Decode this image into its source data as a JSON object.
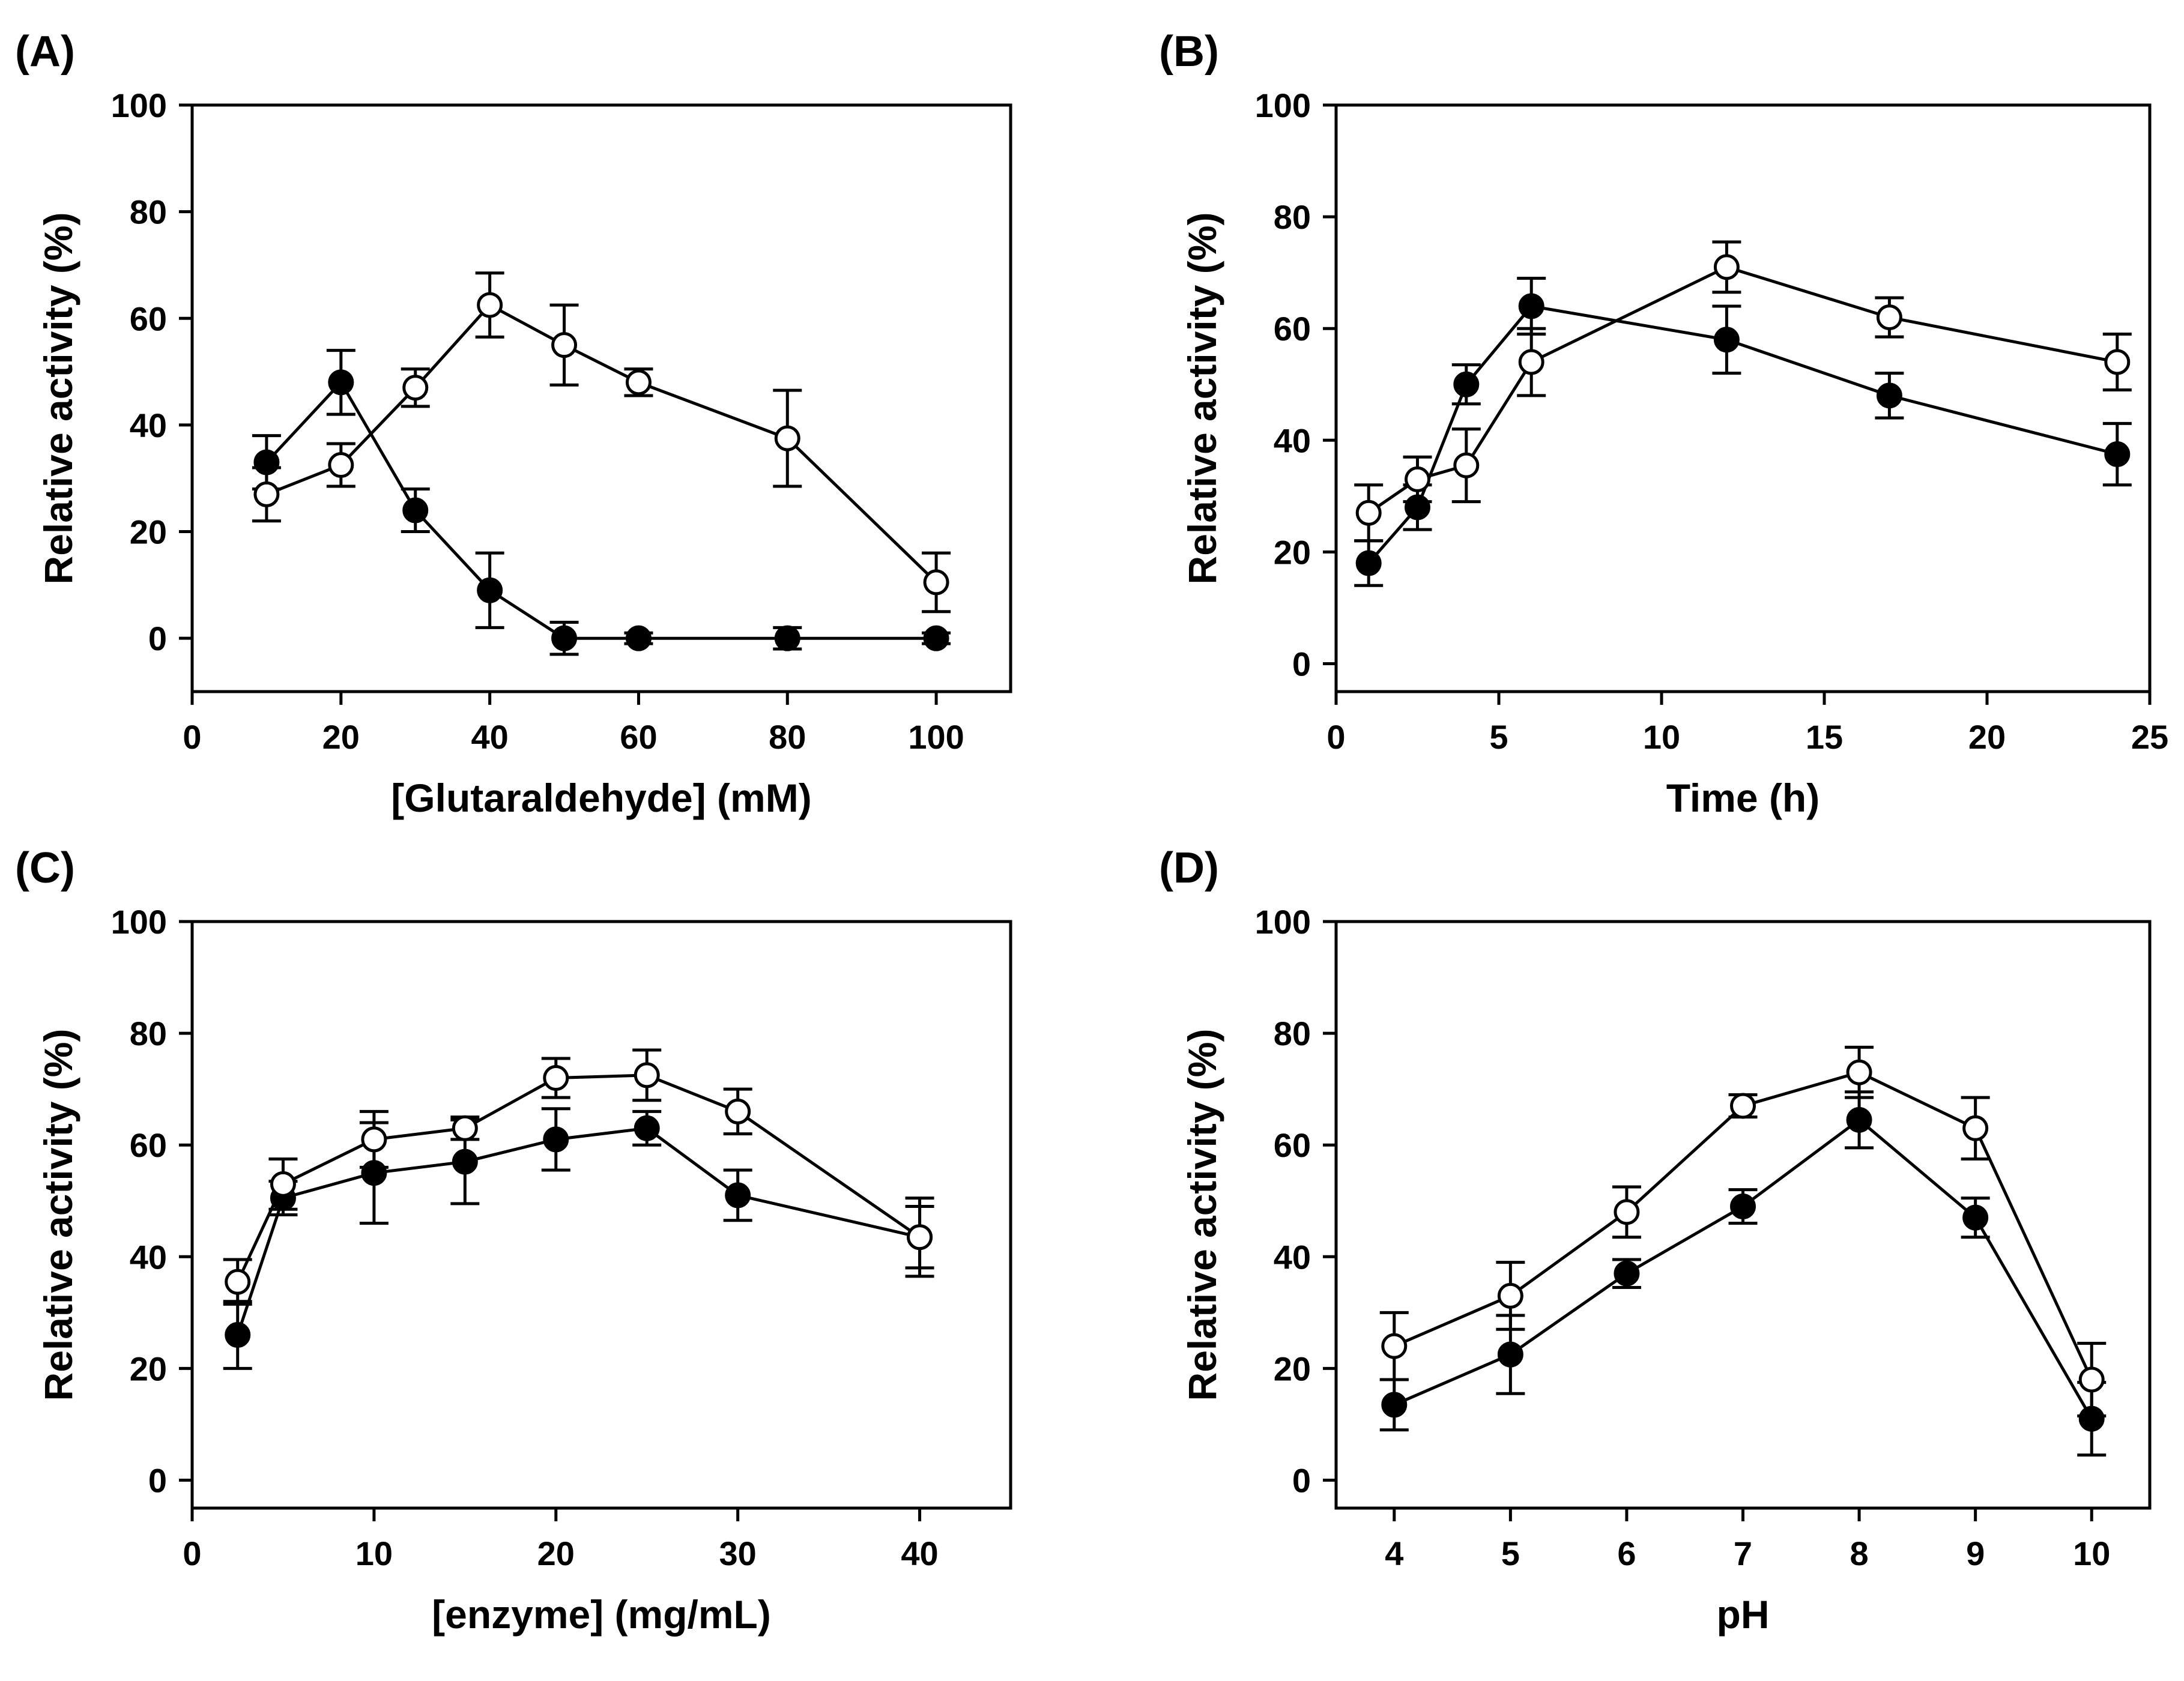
{
  "chart_data": [
    {
      "panel": "(A)",
      "type": "line",
      "xlabel": "[Glutaraldehyde] (mM)",
      "ylabel": "Relative activity (%)",
      "xlim": [
        0,
        110
      ],
      "ylim": [
        -10,
        100
      ],
      "xticks": [
        0,
        20,
        40,
        60,
        80,
        100
      ],
      "yticks": [
        0,
        20,
        40,
        60,
        80,
        100
      ],
      "series": [
        {
          "name": "filled",
          "marker": "filled-circle",
          "x": [
            10,
            20,
            30,
            40,
            50,
            60,
            80,
            100
          ],
          "values": [
            33,
            48,
            24,
            9,
            0,
            0,
            0,
            0
          ],
          "errors": [
            5,
            6,
            4,
            7,
            3,
            1,
            2,
            1
          ]
        },
        {
          "name": "open",
          "marker": "open-circle",
          "x": [
            10,
            20,
            30,
            40,
            50,
            60,
            80,
            100
          ],
          "values": [
            27,
            32.5,
            47,
            62.5,
            55,
            48,
            37.5,
            10.5
          ],
          "errors": [
            5,
            4,
            3.5,
            6,
            7.5,
            2.5,
            9,
            5.5
          ]
        }
      ]
    },
    {
      "panel": "(B)",
      "type": "line",
      "xlabel": "Time (h)",
      "ylabel": "Relative activity (%)",
      "xlim": [
        0,
        25
      ],
      "ylim": [
        -5,
        100
      ],
      "xticks": [
        0,
        5,
        10,
        15,
        20,
        25
      ],
      "yticks": [
        0,
        20,
        40,
        60,
        80,
        100
      ],
      "series": [
        {
          "name": "filled",
          "marker": "filled-circle",
          "x": [
            1,
            2.5,
            4,
            6,
            12,
            17,
            24
          ],
          "values": [
            18,
            28,
            50,
            64,
            58,
            48,
            37.5
          ],
          "errors": [
            4,
            4,
            3.5,
            5,
            6,
            4,
            5.5
          ]
        },
        {
          "name": "open",
          "marker": "open-circle",
          "x": [
            1,
            2.5,
            4,
            6,
            12,
            17,
            24
          ],
          "values": [
            27,
            33,
            35.5,
            54,
            71,
            62,
            54
          ],
          "errors": [
            5,
            4,
            6.5,
            6,
            4.5,
            3.5,
            5
          ]
        }
      ]
    },
    {
      "panel": "(C)",
      "type": "line",
      "xlabel": "[enzyme] (mg/mL)",
      "ylabel": "Relative activity (%)",
      "xlim": [
        0,
        45
      ],
      "ylim": [
        -5,
        100
      ],
      "xticks": [
        0,
        10,
        20,
        30,
        40
      ],
      "yticks": [
        0,
        20,
        40,
        60,
        80,
        100
      ],
      "series": [
        {
          "name": "filled",
          "marker": "filled-circle",
          "x": [
            2.5,
            5,
            10,
            15,
            20,
            25,
            30,
            40
          ],
          "values": [
            26,
            50.5,
            55,
            57,
            61,
            63,
            51,
            43.5
          ],
          "errors": [
            6,
            3,
            9,
            7.5,
            5.5,
            3,
            4.5,
            5.5
          ]
        },
        {
          "name": "open",
          "marker": "open-circle",
          "x": [
            2.5,
            5,
            10,
            15,
            20,
            25,
            30,
            40
          ],
          "values": [
            35.5,
            53,
            61,
            63,
            72,
            72.5,
            66,
            43.5
          ],
          "errors": [
            4,
            4.5,
            5,
            2,
            3.5,
            4.5,
            4,
            7
          ]
        }
      ]
    },
    {
      "panel": "(D)",
      "type": "line",
      "xlabel": "pH",
      "ylabel": "Relative activity (%)",
      "xlim": [
        3.5,
        10.5
      ],
      "ylim": [
        -5,
        100
      ],
      "xticks": [
        4,
        5,
        6,
        7,
        8,
        9,
        10
      ],
      "yticks": [
        0,
        20,
        40,
        60,
        80,
        100
      ],
      "series": [
        {
          "name": "filled",
          "marker": "filled-circle",
          "x": [
            4,
            5,
            6,
            7,
            8,
            9,
            10
          ],
          "values": [
            13.5,
            22.5,
            37,
            49,
            64.5,
            47,
            11
          ],
          "errors": [
            4.5,
            7,
            2.5,
            3,
            5,
            3.5,
            6.5
          ]
        },
        {
          "name": "open",
          "marker": "open-circle",
          "x": [
            4,
            5,
            6,
            7,
            8,
            9,
            10
          ],
          "values": [
            24,
            33,
            48,
            67,
            73,
            63,
            18
          ],
          "errors": [
            6,
            6,
            4.5,
            2,
            4.5,
            5.5,
            6.5
          ]
        }
      ]
    }
  ]
}
